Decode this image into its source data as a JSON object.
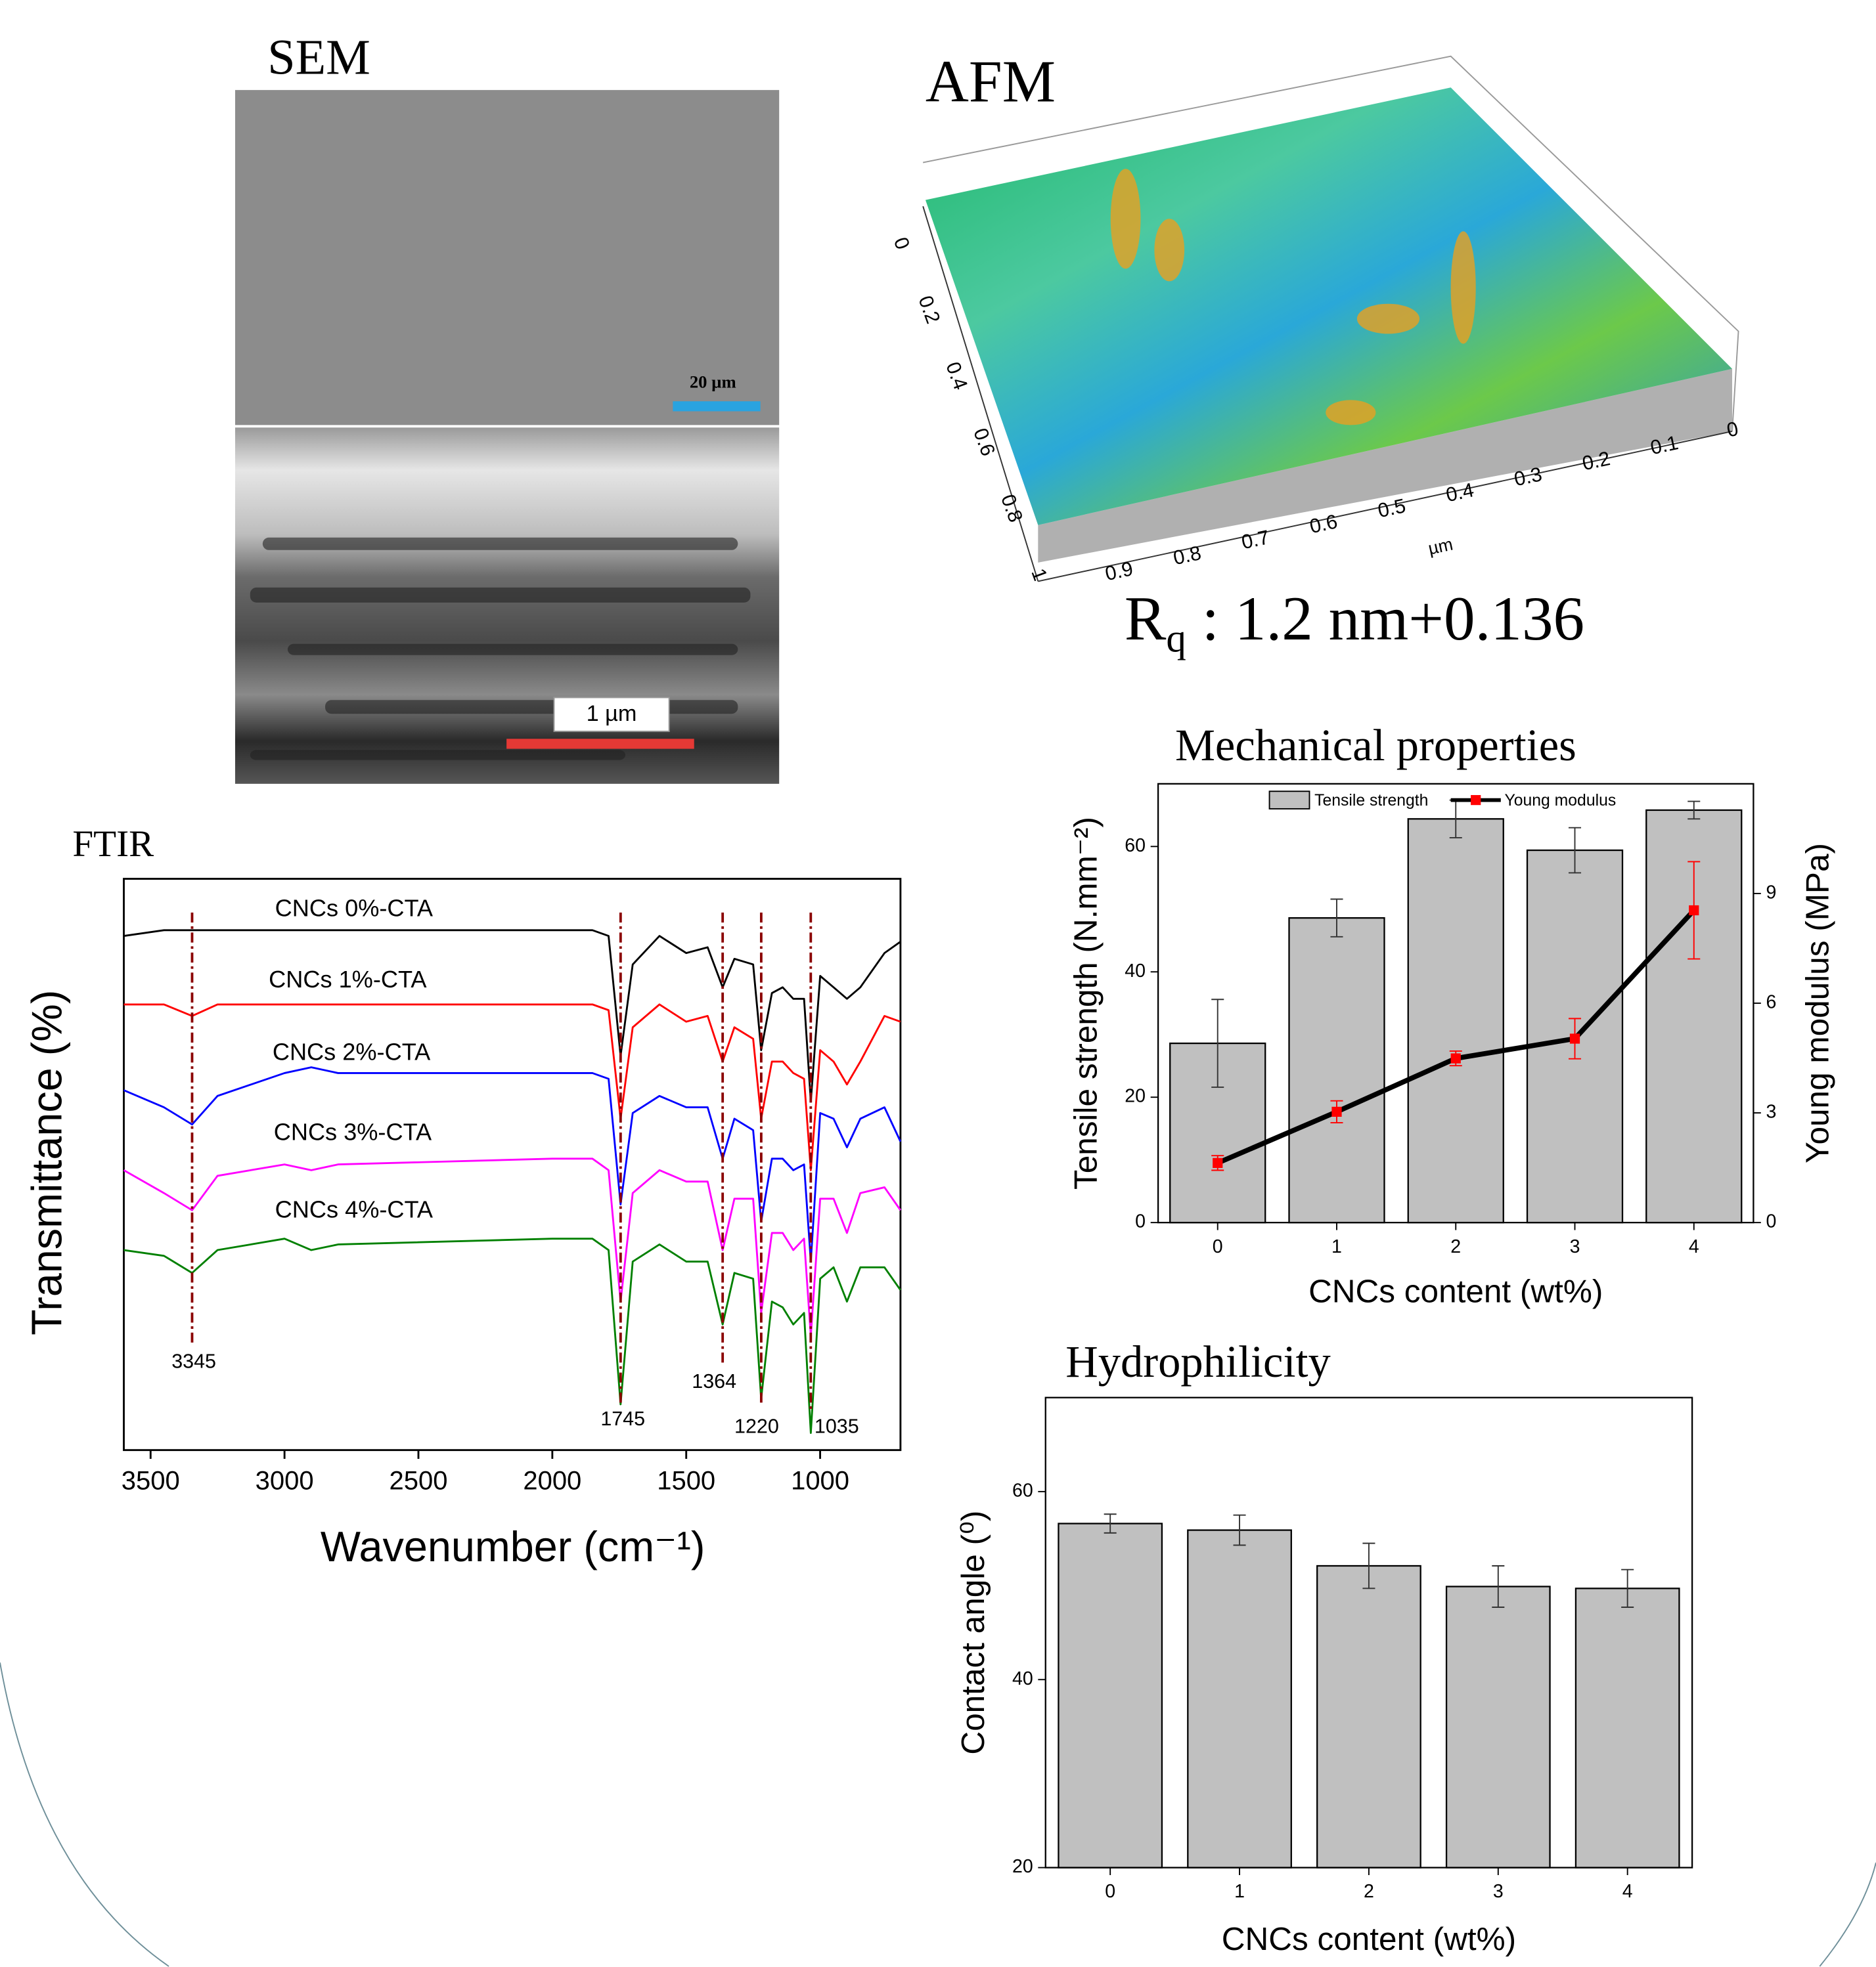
{
  "sem": {
    "title": "SEM",
    "scale_top": "20 µm",
    "scale_bottom": "1 µm"
  },
  "afm": {
    "title": "AFM",
    "unit": "µm",
    "side_ticks": [
      "0",
      "0.2",
      "0.4",
      "0.6",
      "0.8",
      "1"
    ],
    "front_ticks": [
      "0.9",
      "0.8",
      "0.7",
      "0.6",
      "0.5",
      "0.4",
      "0.3",
      "0.2",
      "0.1",
      "0"
    ],
    "roughness": {
      "symbol": "R",
      "subscript": "q",
      "text": " : 1.2 nm+0.136"
    }
  },
  "chart_data": [
    {
      "type": "line",
      "title": "FTIR",
      "x_label": "Wavenumber (cm⁻¹)",
      "y_label": "Transmittance (%)",
      "xlim": [
        3600,
        700
      ],
      "xticks": [
        3500,
        3000,
        2500,
        2000,
        1500,
        1000
      ],
      "ylim": [
        0,
        100
      ],
      "x": [
        3600,
        3450,
        3345,
        3250,
        3000,
        2900,
        2800,
        2000,
        1850,
        1790,
        1745,
        1700,
        1600,
        1500,
        1420,
        1364,
        1320,
        1250,
        1220,
        1180,
        1140,
        1100,
        1060,
        1035,
        1000,
        950,
        900,
        850,
        760,
        700
      ],
      "series": [
        {
          "name": "CNCs 0%-CTA",
          "color": "#000000",
          "values": [
            90,
            91,
            91,
            91,
            91,
            91,
            91,
            91,
            91,
            90,
            69,
            85,
            90,
            87,
            88,
            81,
            86,
            85,
            70,
            80,
            81,
            79,
            79,
            61,
            83,
            81,
            79,
            81,
            87,
            89
          ]
        },
        {
          "name": "CNCs 1%-CTA",
          "color": "#ff0000",
          "values": [
            78,
            78,
            76,
            78,
            78,
            78,
            78,
            78,
            78,
            77,
            58,
            74,
            78,
            75,
            76,
            68,
            74,
            72,
            58,
            68,
            68,
            66,
            65,
            49,
            70,
            68,
            64,
            68,
            76,
            75
          ]
        },
        {
          "name": "CNCs 2%-CTA",
          "color": "#0000ff",
          "values": [
            63,
            60,
            57,
            62,
            66,
            67,
            66,
            66,
            66,
            65,
            43,
            59,
            62,
            60,
            60,
            51,
            58,
            56,
            40,
            51,
            51,
            49,
            50,
            33,
            59,
            58,
            53,
            58,
            60,
            54
          ]
        },
        {
          "name": "CNCs 3%-CTA",
          "color": "#ff00ff",
          "values": [
            49,
            45,
            42,
            48,
            50,
            49,
            50,
            51,
            51,
            49,
            26,
            45,
            49,
            47,
            47,
            35,
            44,
            44,
            24,
            38,
            38,
            35,
            37,
            20,
            44,
            44,
            38,
            45,
            46,
            42
          ]
        },
        {
          "name": "CNCs 4%-CTA",
          "color": "#008000",
          "values": [
            35,
            34,
            31,
            35,
            37,
            35,
            36,
            37,
            37,
            35,
            8,
            33,
            36,
            33,
            33,
            22,
            31,
            30,
            9,
            26,
            25,
            22,
            24,
            3,
            30,
            32,
            26,
            32,
            32,
            28
          ]
        }
      ],
      "peaks": [
        3345,
        1745,
        1364,
        1220,
        1035
      ],
      "peak_color": "#8b0000",
      "peak_label_color": "#1a237e"
    },
    {
      "type": "bar",
      "title": "Mechanical properties",
      "x_label": "CNCs content (wt%)",
      "y_label": "Tensile strength (N.mm⁻²)",
      "y2_label": "Young modulus (MPa)",
      "categories": [
        "0",
        "1",
        "2",
        "3",
        "4"
      ],
      "ylim": [
        0,
        70
      ],
      "yticks": [
        0,
        20,
        40,
        60
      ],
      "y2lim": [
        0,
        12
      ],
      "y2ticks": [
        0,
        3,
        6,
        9
      ],
      "series": [
        {
          "name": "Tensile strength",
          "type": "bar",
          "color": "#c0c0c0",
          "values": [
            28.6,
            48.6,
            64.4,
            59.4,
            65.8
          ],
          "errors": [
            7,
            3,
            3,
            3.6,
            1.4
          ]
        },
        {
          "name": "Young modulus",
          "type": "line",
          "axis": "y2",
          "color": "#000000",
          "marker_color": "#ff0000",
          "values": [
            1.63,
            3.03,
            4.49,
            5.03,
            8.54
          ],
          "errors": [
            0.2,
            0.3,
            0.2,
            0.55,
            1.33
          ]
        }
      ]
    },
    {
      "type": "bar",
      "title": "Hydrophilicity",
      "x_label": "CNCs content (wt%)",
      "y_label": "Contact angle (⁰)",
      "categories": [
        "0",
        "1",
        "2",
        "3",
        "4"
      ],
      "ylim": [
        20,
        70
      ],
      "yticks": [
        20,
        40,
        60
      ],
      "color": "#c0c0c0",
      "values": [
        56.6,
        55.9,
        52.1,
        49.9,
        49.7
      ],
      "errors": [
        1.0,
        1.6,
        2.4,
        2.2,
        2.0
      ]
    }
  ]
}
